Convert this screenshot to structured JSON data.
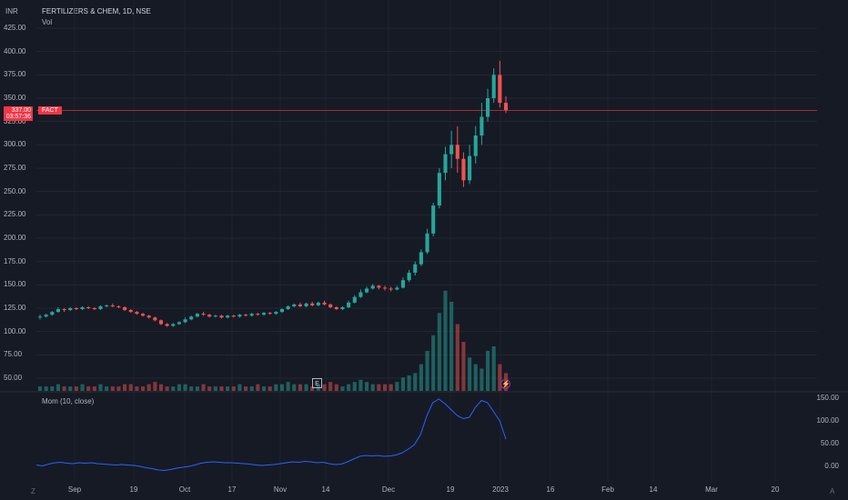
{
  "header": {
    "currency": "INR",
    "title": "FERTILIZERS & CHEM, 1D, NSE",
    "volume_label": "Vol"
  },
  "price_axis": [
    "425.00",
    "400.00",
    "375.00",
    "350.00",
    "325.00",
    "300.00",
    "275.00",
    "250.00",
    "225.00",
    "200.00",
    "175.00",
    "150.00",
    "125.00",
    "100.00",
    "75.00",
    "50.00"
  ],
  "last_price": {
    "value": "337.00",
    "countdown": "03:57:36",
    "symbol": "FACT"
  },
  "momentum": {
    "label": "Mom (10, close)",
    "axis": [
      "150.00",
      "100.00",
      "50.00",
      "0.00"
    ]
  },
  "time_axis": [
    "Sep",
    "19",
    "Oct",
    "17",
    "Nov",
    "14",
    "Dec",
    "19",
    "2023",
    "16",
    "Feb",
    "14",
    "Mar",
    "20"
  ],
  "corner_icons": {
    "left": "Z",
    "right": "A"
  },
  "markers": {
    "earnings": "E",
    "dividend": "⚡"
  },
  "colors": {
    "up": "#26a69a",
    "down": "#ef5350",
    "momentum_line": "#2962ff",
    "background": "#161a25"
  },
  "chart_data": {
    "type": "candlestick",
    "title": "FERTILIZERS & CHEM, 1D, NSE",
    "ylabel": "INR",
    "ylim": [
      25,
      440
    ],
    "candles": [
      [
        115,
        116,
        113,
        118
      ],
      [
        116,
        118,
        115,
        119
      ],
      [
        118,
        121,
        117,
        122
      ],
      [
        121,
        124,
        120,
        126
      ],
      [
        124,
        123,
        121,
        125
      ],
      [
        123,
        125,
        122,
        126
      ],
      [
        125,
        124,
        123,
        126
      ],
      [
        124,
        126,
        123,
        127
      ],
      [
        126,
        125,
        124,
        127
      ],
      [
        125,
        124,
        123,
        126
      ],
      [
        124,
        127,
        123,
        128
      ],
      [
        127,
        128,
        126,
        129
      ],
      [
        128,
        127,
        126,
        130
      ],
      [
        127,
        126,
        125,
        128
      ],
      [
        126,
        123,
        122,
        127
      ],
      [
        123,
        121,
        120,
        124
      ],
      [
        121,
        119,
        118,
        122
      ],
      [
        119,
        117,
        116,
        120
      ],
      [
        117,
        115,
        114,
        118
      ],
      [
        115,
        112,
        111,
        116
      ],
      [
        112,
        108,
        107,
        113
      ],
      [
        108,
        106,
        105,
        109
      ],
      [
        106,
        108,
        105,
        109
      ],
      [
        108,
        110,
        107,
        111
      ],
      [
        110,
        113,
        109,
        115
      ],
      [
        113,
        116,
        112,
        117
      ],
      [
        116,
        119,
        115,
        120
      ],
      [
        119,
        118,
        117,
        121
      ],
      [
        118,
        116,
        115,
        119
      ],
      [
        116,
        117,
        115,
        118
      ],
      [
        117,
        115,
        114,
        118
      ],
      [
        115,
        117,
        114,
        118
      ],
      [
        117,
        116,
        115,
        118
      ],
      [
        116,
        118,
        115,
        119
      ],
      [
        118,
        117,
        116,
        119
      ],
      [
        117,
        119,
        116,
        120
      ],
      [
        119,
        118,
        117,
        120
      ],
      [
        118,
        120,
        117,
        121
      ],
      [
        120,
        119,
        118,
        121
      ],
      [
        119,
        121,
        118,
        122
      ],
      [
        121,
        124,
        120,
        125
      ],
      [
        124,
        127,
        123,
        128
      ],
      [
        127,
        129,
        126,
        130
      ],
      [
        129,
        127,
        126,
        131
      ],
      [
        127,
        130,
        126,
        131
      ],
      [
        130,
        128,
        127,
        132
      ],
      [
        128,
        131,
        127,
        132
      ],
      [
        131,
        129,
        128,
        133
      ],
      [
        129,
        126,
        125,
        130
      ],
      [
        126,
        124,
        123,
        127
      ],
      [
        124,
        126,
        123,
        127
      ],
      [
        126,
        131,
        125,
        133
      ],
      [
        131,
        137,
        130,
        139
      ],
      [
        137,
        142,
        136,
        145
      ],
      [
        142,
        146,
        141,
        148
      ],
      [
        146,
        149,
        145,
        151
      ],
      [
        149,
        147,
        145,
        150
      ],
      [
        147,
        146,
        144,
        149
      ],
      [
        146,
        145,
        143,
        148
      ],
      [
        145,
        147,
        144,
        149
      ],
      [
        147,
        155,
        146,
        158
      ],
      [
        155,
        163,
        153,
        166
      ],
      [
        163,
        172,
        160,
        175
      ],
      [
        172,
        185,
        170,
        188
      ],
      [
        185,
        205,
        183,
        210
      ],
      [
        205,
        235,
        202,
        238
      ],
      [
        235,
        270,
        232,
        275
      ],
      [
        270,
        290,
        262,
        298
      ],
      [
        290,
        300,
        275,
        315
      ],
      [
        300,
        285,
        270,
        320
      ],
      [
        285,
        262,
        255,
        292
      ],
      [
        262,
        288,
        258,
        300
      ],
      [
        288,
        310,
        280,
        320
      ],
      [
        310,
        330,
        300,
        345
      ],
      [
        330,
        350,
        325,
        360
      ],
      [
        350,
        375,
        345,
        382
      ],
      [
        375,
        345,
        340,
        390
      ],
      [
        345,
        337,
        334,
        352
      ]
    ],
    "volume": [
      2,
      2,
      2,
      3,
      2,
      2,
      2,
      3,
      2,
      2,
      3,
      2,
      2,
      2,
      3,
      3,
      2,
      2,
      3,
      4,
      3,
      2,
      2,
      3,
      3,
      2,
      2,
      3,
      2,
      2,
      2,
      2,
      2,
      3,
      2,
      2,
      3,
      2,
      2,
      3,
      3,
      4,
      3,
      3,
      3,
      2,
      3,
      3,
      4,
      3,
      2,
      3,
      4,
      5,
      4,
      3,
      3,
      3,
      3,
      4,
      6,
      7,
      8,
      12,
      18,
      25,
      35,
      45,
      40,
      30,
      22,
      15,
      12,
      10,
      18,
      20,
      12,
      8
    ],
    "momentum": [
      3,
      1,
      5,
      8,
      9,
      7,
      6,
      8,
      7,
      8,
      6,
      5,
      4,
      3,
      4,
      3,
      2,
      0,
      -3,
      -5,
      -8,
      -9,
      -7,
      -4,
      -2,
      0,
      3,
      7,
      9,
      10,
      9,
      8,
      8,
      7,
      6,
      5,
      3,
      2,
      3,
      4,
      6,
      8,
      10,
      9,
      11,
      10,
      8,
      9,
      6,
      4,
      5,
      10,
      16,
      22,
      24,
      23,
      24,
      22,
      23,
      25,
      30,
      38,
      48,
      70,
      110,
      140,
      148,
      138,
      125,
      112,
      105,
      108,
      130,
      145,
      140,
      120,
      100,
      60
    ]
  }
}
